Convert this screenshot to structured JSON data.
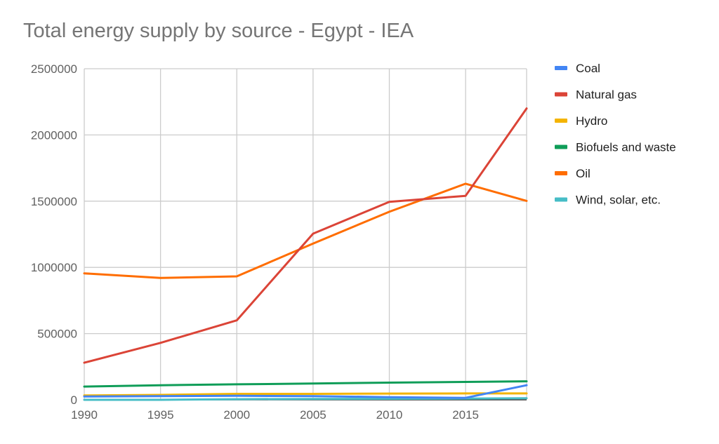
{
  "chart_data": {
    "type": "line",
    "title": "Total energy supply by source - Egypt - IEA",
    "xlabel": "",
    "ylabel": "",
    "x": [
      1990,
      1995,
      2000,
      2005,
      2010,
      2015,
      2019
    ],
    "xticks": [
      1990,
      1995,
      2000,
      2005,
      2010,
      2015
    ],
    "xlim": [
      1990,
      2019
    ],
    "yticks": [
      0,
      500000,
      1000000,
      1500000,
      2000000,
      2500000
    ],
    "ylim": [
      0,
      2500000
    ],
    "grid": true,
    "legend_position": "right",
    "series": [
      {
        "name": "Coal",
        "color": "#4285f4",
        "values": [
          25000,
          28000,
          30000,
          28000,
          20000,
          15000,
          110000
        ]
      },
      {
        "name": "Natural gas",
        "color": "#db4437",
        "values": [
          280000,
          430000,
          600000,
          1255000,
          1495000,
          1540000,
          2200000
        ]
      },
      {
        "name": "Hydro",
        "color": "#f4b400",
        "values": [
          33000,
          37000,
          45000,
          45000,
          47000,
          48000,
          48000
        ]
      },
      {
        "name": "Biofuels and waste",
        "color": "#0f9d58",
        "values": [
          100000,
          110000,
          117000,
          123000,
          130000,
          135000,
          140000
        ]
      },
      {
        "name": "Oil",
        "color": "#ff6d00",
        "values": [
          955000,
          920000,
          932000,
          1180000,
          1420000,
          1632000,
          1502000
        ]
      },
      {
        "name": "Wind, solar, etc.",
        "color": "#46bdc6",
        "values": [
          0,
          0,
          5000,
          7000,
          8000,
          9000,
          12000
        ]
      }
    ]
  }
}
